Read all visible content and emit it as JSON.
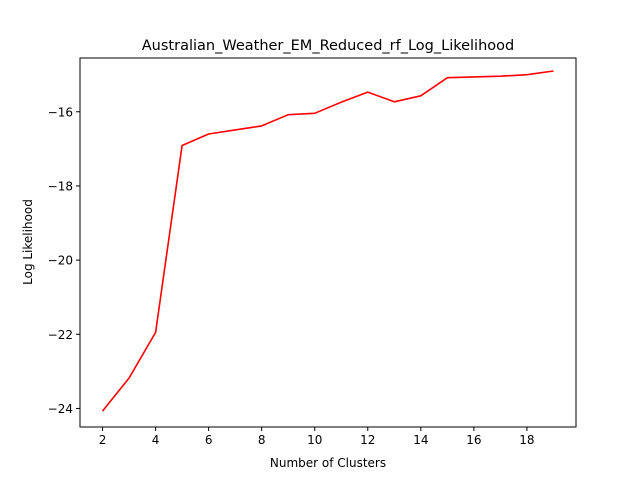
{
  "chart_data": {
    "type": "line",
    "title": "Australian_Weather_EM_Reduced_rf_Log_Likelihood",
    "xlabel": "Number of Clusters",
    "ylabel": "Log Likelihood",
    "xlim": [
      1.15,
      19.85
    ],
    "ylim": [
      -24.5,
      -14.55
    ],
    "xticks": [
      2,
      4,
      6,
      8,
      10,
      12,
      14,
      16,
      18
    ],
    "yticks": [
      -24,
      -22,
      -20,
      -18,
      -16
    ],
    "grid": false,
    "series": [
      {
        "color": "#ff0000",
        "x": [
          2,
          3,
          4,
          5,
          6,
          7,
          8,
          9,
          10,
          11,
          12,
          13,
          14,
          15,
          16,
          17,
          18,
          19
        ],
        "y": [
          -24.07,
          -23.18,
          -21.95,
          -16.91,
          -16.6,
          -16.49,
          -16.38,
          -16.08,
          -16.04,
          -15.74,
          -15.47,
          -15.73,
          -15.57,
          -15.08,
          -15.06,
          -15.04,
          -15.0,
          -14.9
        ]
      }
    ]
  }
}
